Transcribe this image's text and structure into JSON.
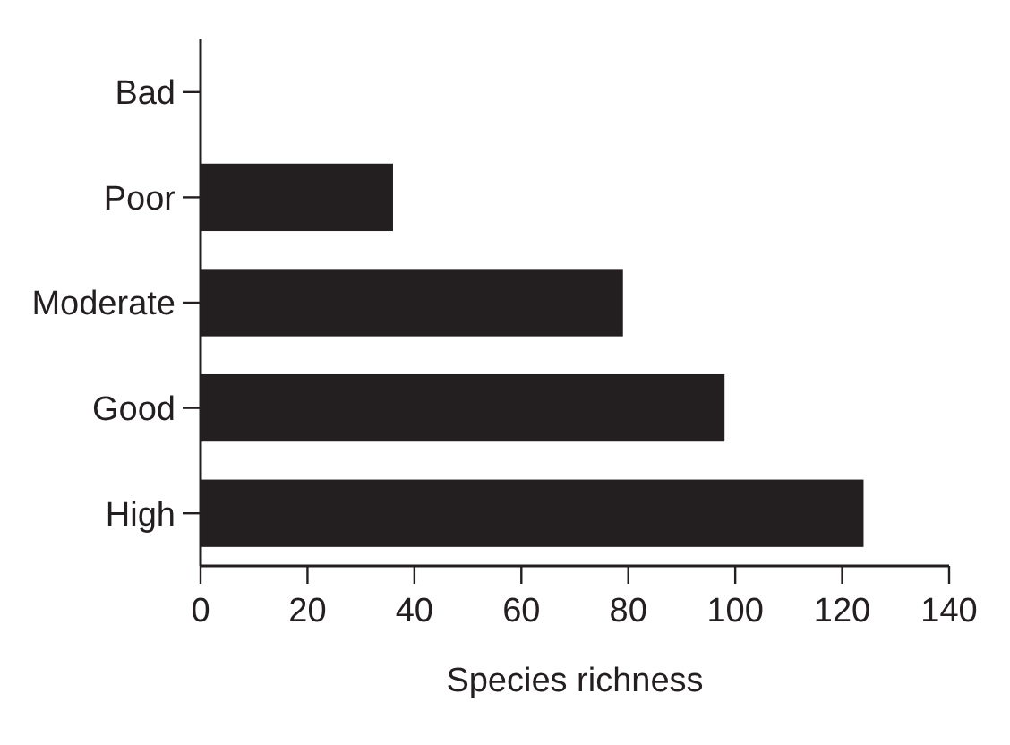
{
  "chart_data": {
    "type": "bar",
    "orientation": "horizontal",
    "categories": [
      "Bad",
      "Poor",
      "Moderate",
      "Good",
      "High"
    ],
    "values": [
      0,
      36,
      79,
      98,
      124
    ],
    "color": "#231f20",
    "xlabel": "Species richness",
    "xlim": [
      0,
      140
    ],
    "xticks": [
      0,
      20,
      40,
      60,
      80,
      100,
      120,
      140
    ],
    "grid": false
  }
}
